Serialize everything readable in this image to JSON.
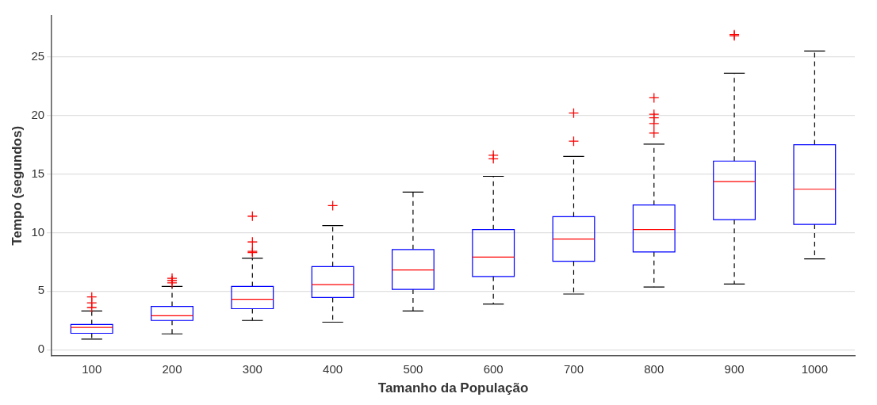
{
  "chart_data": {
    "type": "box",
    "xlabel": "Tamanho da População",
    "ylabel": "Tempo (segundos)",
    "categories": [
      "100",
      "200",
      "300",
      "400",
      "500",
      "600",
      "700",
      "800",
      "900",
      "1000"
    ],
    "color": "#0000ff",
    "ylim": [
      -0.5,
      28.5
    ],
    "yticks": [
      0,
      5,
      10,
      15,
      20,
      25
    ],
    "grid": "y",
    "marker": "cross",
    "boxes": [
      {
        "low": 0.9,
        "q1": 1.4,
        "median": 1.9,
        "q3": 2.15,
        "high": 3.3,
        "outliers": [
          3.6,
          4.0,
          4.5
        ]
      },
      {
        "low": 1.35,
        "q1": 2.5,
        "median": 2.9,
        "q3": 3.7,
        "high": 5.4,
        "outliers": [
          5.7,
          5.9,
          6.1
        ]
      },
      {
        "low": 2.5,
        "q1": 3.5,
        "median": 4.3,
        "q3": 5.4,
        "high": 7.8,
        "outliers": [
          8.3,
          8.4,
          9.2,
          11.4
        ]
      },
      {
        "low": 2.35,
        "q1": 4.45,
        "median": 5.55,
        "q3": 7.1,
        "high": 10.6,
        "outliers": [
          12.3
        ]
      },
      {
        "low": 3.3,
        "q1": 5.15,
        "median": 6.8,
        "q3": 8.55,
        "high": 13.45
      },
      {
        "low": 3.9,
        "q1": 6.25,
        "median": 7.9,
        "q3": 10.25,
        "high": 14.8,
        "outliers": [
          16.3,
          16.6
        ]
      },
      {
        "low": 4.75,
        "q1": 7.55,
        "median": 9.45,
        "q3": 11.35,
        "high": 16.5,
        "outliers": [
          17.8,
          20.2
        ]
      },
      {
        "low": 5.35,
        "q1": 8.35,
        "median": 10.25,
        "q3": 12.35,
        "high": 17.55,
        "outliers": [
          18.5,
          19.3,
          19.8,
          20.1,
          21.5
        ]
      },
      {
        "low": 5.6,
        "q1": 11.1,
        "median": 14.35,
        "q3": 16.1,
        "high": 23.6,
        "outliers": [
          26.8,
          26.9
        ]
      },
      {
        "low": 7.75,
        "q1": 10.7,
        "median": 13.7,
        "q3": 17.5,
        "high": 25.5
      }
    ]
  }
}
